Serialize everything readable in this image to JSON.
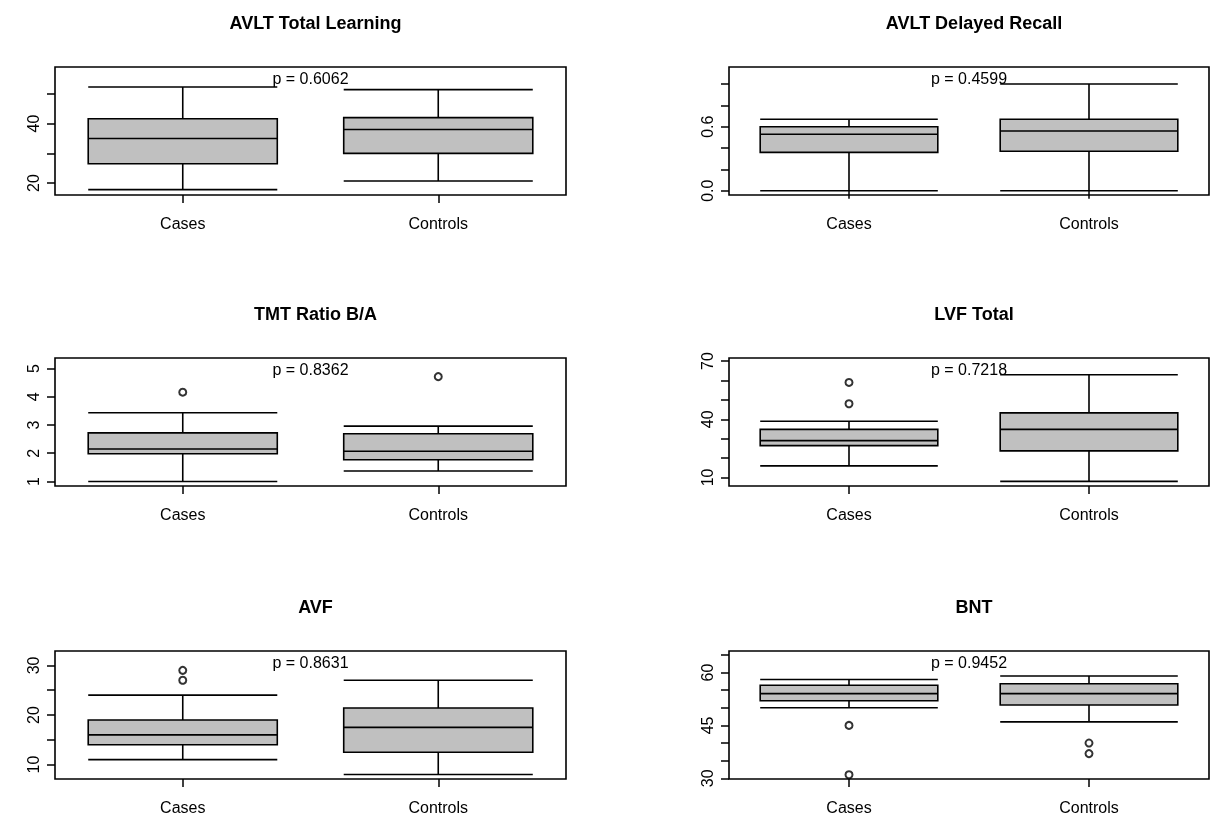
{
  "chart_data": [
    {
      "type": "box",
      "title": "AVLT Total Learning",
      "categories": [
        "Cases",
        "Controls"
      ],
      "annotations": [
        "p = 0.6062"
      ],
      "ylim": [
        16,
        59
      ],
      "yticks": [
        20,
        {
          "value": 30,
          "label": null
        },
        40,
        {
          "value": 50,
          "label": null
        }
      ],
      "series": [
        {
          "color": "#c0c0c0",
          "boxes": [
            {
              "low": 17.8,
              "q1": 26.5,
              "median": 35,
              "q3": 41.6,
              "high": 52.3
            },
            {
              "low": 20.7,
              "q1": 30,
              "median": 38,
              "q3": 42,
              "high": 51.4
            }
          ]
        }
      ]
    },
    {
      "type": "box",
      "title": "AVLT Delayed Recall",
      "categories": [
        "Cases",
        "Controls"
      ],
      "annotations": [
        "p = 0.4599"
      ],
      "ylim": [
        -0.04,
        1.16
      ],
      "yticks": [
        {
          "value": 0,
          "label": "0.0"
        },
        {
          "value": 0.2,
          "label": null
        },
        {
          "value": 0.4,
          "label": null
        },
        0.6,
        {
          "value": 0.8,
          "label": null
        },
        {
          "value": 1,
          "label": null
        }
      ],
      "series": [
        {
          "color": "#c0c0c0",
          "boxes": [
            {
              "low": 0,
              "q1": 0.36,
              "median": 0.53,
              "q3": 0.6,
              "high": 0.67
            },
            {
              "low": 0,
              "q1": 0.37,
              "median": 0.56,
              "q3": 0.67,
              "high": 1.0
            }
          ]
        }
      ]
    },
    {
      "type": "box",
      "title": "TMT Ratio B/A",
      "categories": [
        "Cases",
        "Controls"
      ],
      "annotations": [
        "p = 0.8362"
      ],
      "ylim": [
        0.84,
        5.37
      ],
      "yticks": [
        1,
        2,
        3,
        4,
        5
      ],
      "series": [
        {
          "color": "#c0c0c0",
          "boxes": [
            {
              "low": 1,
              "q1": 1.98,
              "median": 2.15,
              "q3": 2.72,
              "high": 3.43,
              "outliers": [
                4.16
              ]
            },
            {
              "low": 1.37,
              "q1": 1.77,
              "median": 2.07,
              "q3": 2.69,
              "high": 2.96,
              "outliers": [
                4.71
              ]
            }
          ]
        }
      ]
    },
    {
      "type": "box",
      "title": "LVF Total",
      "categories": [
        "Cases",
        "Controls"
      ],
      "annotations": [
        "p = 0.7218"
      ],
      "ylim": [
        5.6,
        71.6
      ],
      "yticks": [
        10,
        {
          "value": 20,
          "label": null
        },
        {
          "value": 30,
          "label": null
        },
        40,
        {
          "value": 50,
          "label": null
        },
        {
          "value": 60,
          "label": null
        },
        70
      ],
      "series": [
        {
          "color": "#c0c0c0",
          "boxes": [
            {
              "low": 16,
              "q1": 26.4,
              "median": 29,
              "q3": 34.8,
              "high": 39,
              "outliers": [
                48,
                59
              ]
            },
            {
              "low": 8,
              "q1": 23.7,
              "median": 34.8,
              "q3": 43.3,
              "high": 63
            }
          ]
        }
      ]
    },
    {
      "type": "box",
      "title": "AVF",
      "categories": [
        "Cases",
        "Controls"
      ],
      "annotations": [
        "p = 0.8631"
      ],
      "ylim": [
        7.1,
        32.9
      ],
      "yticks": [
        10,
        {
          "value": 15,
          "label": null
        },
        20,
        {
          "value": 25,
          "label": null
        },
        30
      ],
      "series": [
        {
          "color": "#c0c0c0",
          "boxes": [
            {
              "low": 11,
              "q1": 14,
              "median": 16,
              "q3": 19,
              "high": 24,
              "outliers": [
                27,
                29
              ]
            },
            {
              "low": 8,
              "q1": 12.5,
              "median": 17.5,
              "q3": 21.4,
              "high": 27
            }
          ]
        }
      ]
    },
    {
      "type": "box",
      "title": "BNT",
      "categories": [
        "Cases",
        "Controls"
      ],
      "annotations": [
        "p = 0.9452"
      ],
      "ylim": [
        29.8,
        66.1
      ],
      "yticks": [
        30,
        {
          "value": 35,
          "label": null
        },
        {
          "value": 40,
          "label": null
        },
        45,
        {
          "value": 50,
          "label": null
        },
        {
          "value": 55,
          "label": null
        },
        60,
        {
          "value": 65,
          "label": null
        }
      ],
      "series": [
        {
          "color": "#c0c0c0",
          "boxes": [
            {
              "low": 50,
              "q1": 52,
              "median": 54,
              "q3": 56.4,
              "high": 58,
              "outliers": [
                45,
                31
              ]
            },
            {
              "low": 46,
              "q1": 50.8,
              "median": 54,
              "q3": 56.8,
              "high": 59,
              "outliers": [
                40,
                37
              ]
            }
          ]
        }
      ]
    }
  ]
}
